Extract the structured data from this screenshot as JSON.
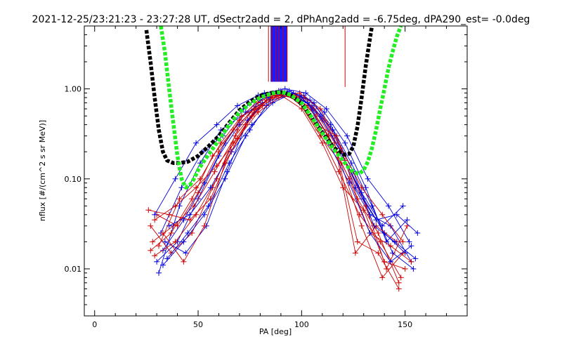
{
  "chart_data": {
    "type": "line",
    "title": "2021-12-25/23:21:23 - 23:27:28 UT, dSectr2add = 2, dPhAng2add = -6.75deg, dPA290_est=  -0.0deg",
    "xlabel": "PA [deg]",
    "ylabel": "nflux [#/(cm^2 s sr MeV)]",
    "xlim": [
      -5,
      180
    ],
    "ylim": [
      0.003,
      5.0
    ],
    "yscale": "log",
    "x_ticks": [
      {
        "value": 0,
        "label": "0"
      },
      {
        "value": 50,
        "label": "50"
      },
      {
        "value": 100,
        "label": "100"
      },
      {
        "value": 150,
        "label": "150"
      }
    ],
    "x_minor_step": 10,
    "y_ticks": [
      {
        "value": 0.01,
        "label": "0.01"
      },
      {
        "value": 0.1,
        "label": "0.10"
      },
      {
        "value": 1.0,
        "label": "1.00"
      }
    ],
    "grid": false,
    "colors": {
      "red": "#cc0000",
      "blue": "#0000dd",
      "black_fit": "#000000",
      "green_fit": "#22ee22"
    },
    "vertical_markers": {
      "blue_band": [
        85,
        93
      ],
      "red_lines": [
        84,
        85.5,
        87.5,
        89,
        91,
        93,
        121
      ],
      "top_y": 5.0,
      "bottom_y": 1.2,
      "red_121_bottom_y": 1.05
    },
    "fits": [
      {
        "color": "black_fit",
        "x": [
          25,
          27,
          29,
          31,
          33,
          35,
          38,
          41,
          45,
          50,
          55,
          60,
          65,
          70,
          75,
          80,
          85,
          88,
          90,
          92,
          95,
          100,
          105,
          110,
          115,
          118,
          121,
          123,
          125,
          127,
          129,
          131,
          133,
          134
        ],
        "y": [
          4.5,
          2.0,
          0.8,
          0.35,
          0.2,
          0.16,
          0.15,
          0.15,
          0.155,
          0.18,
          0.23,
          0.3,
          0.42,
          0.58,
          0.72,
          0.84,
          0.9,
          0.92,
          0.92,
          0.9,
          0.84,
          0.68,
          0.48,
          0.33,
          0.23,
          0.2,
          0.185,
          0.19,
          0.23,
          0.38,
          0.8,
          1.8,
          3.6,
          5.0
        ]
      },
      {
        "color": "green_fit",
        "x": [
          32,
          34,
          36,
          38,
          40,
          42,
          44,
          46,
          48,
          50,
          53,
          56,
          60,
          65,
          70,
          75,
          80,
          85,
          88,
          90,
          92,
          95,
          100,
          105,
          110,
          115,
          120,
          123,
          125,
          127,
          128,
          130,
          132,
          134,
          136,
          138,
          140,
          142,
          144,
          146,
          148
        ],
        "y": [
          5.0,
          2.5,
          1.0,
          0.42,
          0.18,
          0.1,
          0.08,
          0.085,
          0.1,
          0.125,
          0.16,
          0.2,
          0.27,
          0.4,
          0.55,
          0.68,
          0.8,
          0.88,
          0.91,
          0.92,
          0.9,
          0.85,
          0.7,
          0.48,
          0.32,
          0.22,
          0.16,
          0.13,
          0.12,
          0.115,
          0.115,
          0.125,
          0.155,
          0.22,
          0.35,
          0.6,
          1.0,
          1.7,
          2.6,
          3.8,
          5.0
        ]
      }
    ],
    "series": [
      {
        "color": "blue",
        "x": [
          30,
          40,
          50,
          60,
          70,
          80,
          90,
          100,
          110,
          120,
          130,
          140,
          150
        ],
        "y": [
          0.012,
          0.02,
          0.06,
          0.18,
          0.4,
          0.75,
          0.95,
          0.8,
          0.45,
          0.18,
          0.06,
          0.025,
          0.015
        ]
      },
      {
        "color": "red",
        "x": [
          28,
          38,
          48,
          58,
          68,
          78,
          88,
          98,
          108,
          118,
          128,
          138,
          148
        ],
        "y": [
          0.02,
          0.03,
          0.05,
          0.12,
          0.3,
          0.6,
          0.9,
          0.75,
          0.35,
          0.12,
          0.04,
          0.02,
          0.008
        ]
      },
      {
        "color": "blue",
        "x": [
          33,
          43,
          53,
          63,
          73,
          83,
          93,
          103,
          113,
          123,
          133,
          143,
          153
        ],
        "y": [
          0.016,
          0.035,
          0.09,
          0.25,
          0.55,
          0.85,
          0.92,
          0.7,
          0.3,
          0.1,
          0.04,
          0.03,
          0.012
        ]
      },
      {
        "color": "red",
        "x": [
          27,
          37,
          47,
          57,
          67,
          77,
          87,
          97,
          107,
          117,
          127,
          137,
          147
        ],
        "y": [
          0.03,
          0.015,
          0.025,
          0.08,
          0.25,
          0.55,
          0.88,
          0.85,
          0.5,
          0.2,
          0.02,
          0.015,
          0.006
        ]
      },
      {
        "color": "blue",
        "x": [
          31,
          41,
          51,
          61,
          71,
          81,
          91,
          101,
          111,
          121,
          131,
          141,
          151
        ],
        "y": [
          0.009,
          0.05,
          0.15,
          0.35,
          0.5,
          0.7,
          0.9,
          0.85,
          0.55,
          0.25,
          0.08,
          0.02,
          0.035
        ]
      },
      {
        "color": "red",
        "x": [
          29,
          39,
          49,
          59,
          69,
          79,
          89,
          99,
          109,
          119,
          129,
          139,
          149
        ],
        "y": [
          0.014,
          0.02,
          0.04,
          0.1,
          0.35,
          0.7,
          0.95,
          0.7,
          0.3,
          0.15,
          0.03,
          0.008,
          0.015
        ]
      },
      {
        "color": "blue",
        "x": [
          34,
          44,
          54,
          64,
          74,
          84,
          94,
          104,
          114,
          124,
          134,
          144,
          154
        ],
        "y": [
          0.02,
          0.015,
          0.03,
          0.12,
          0.45,
          0.8,
          0.95,
          0.75,
          0.4,
          0.15,
          0.05,
          0.015,
          0.01
        ]
      },
      {
        "color": "red",
        "x": [
          30,
          40,
          50,
          60,
          70,
          80,
          90,
          100,
          110,
          120,
          130,
          140,
          150
        ],
        "y": [
          0.04,
          0.03,
          0.07,
          0.2,
          0.45,
          0.8,
          0.85,
          0.6,
          0.25,
          0.08,
          0.045,
          0.012,
          0.01
        ]
      },
      {
        "color": "blue",
        "x": [
          32,
          42,
          52,
          62,
          72,
          82,
          92,
          102,
          112,
          122,
          132,
          142,
          152
        ],
        "y": [
          0.025,
          0.08,
          0.2,
          0.3,
          0.6,
          0.9,
          1.0,
          0.9,
          0.6,
          0.3,
          0.1,
          0.05,
          0.02
        ]
      },
      {
        "color": "red",
        "x": [
          26,
          36,
          46,
          56,
          66,
          76,
          86,
          96,
          106,
          116,
          126,
          136,
          146
        ],
        "y": [
          0.045,
          0.04,
          0.035,
          0.06,
          0.2,
          0.5,
          0.8,
          0.9,
          0.6,
          0.25,
          0.015,
          0.03,
          0.02
        ]
      },
      {
        "color": "blue",
        "x": [
          35,
          45,
          55,
          65,
          75,
          85,
          95,
          105,
          115,
          125,
          135,
          145,
          155
        ],
        "y": [
          0.013,
          0.025,
          0.05,
          0.15,
          0.35,
          0.75,
          0.85,
          0.65,
          0.35,
          0.12,
          0.03,
          0.02,
          0.013
        ]
      },
      {
        "color": "red",
        "x": [
          31,
          41,
          51,
          61,
          71,
          81,
          91,
          101,
          111,
          121,
          131,
          141,
          151
        ],
        "y": [
          0.018,
          0.06,
          0.1,
          0.25,
          0.5,
          0.65,
          0.9,
          0.8,
          0.45,
          0.16,
          0.05,
          0.01,
          0.03
        ]
      },
      {
        "color": "blue",
        "x": [
          36,
          46,
          56,
          66,
          76,
          86,
          96,
          106,
          116,
          126,
          136,
          146,
          156
        ],
        "y": [
          0.03,
          0.04,
          0.08,
          0.2,
          0.4,
          0.7,
          0.9,
          0.7,
          0.3,
          0.08,
          0.035,
          0.04,
          0.025
        ]
      },
      {
        "color": "red",
        "x": [
          33,
          43,
          53,
          63,
          73,
          83,
          93,
          103,
          113,
          123,
          133,
          143,
          153
        ],
        "y": [
          0.025,
          0.012,
          0.03,
          0.15,
          0.4,
          0.75,
          0.9,
          0.65,
          0.3,
          0.1,
          0.025,
          0.018,
          0.012
        ]
      },
      {
        "color": "blue",
        "x": [
          29,
          39,
          49,
          59,
          69,
          79,
          89,
          99,
          109,
          119,
          129,
          139,
          149
        ],
        "y": [
          0.04,
          0.1,
          0.25,
          0.4,
          0.65,
          0.85,
          0.95,
          0.85,
          0.5,
          0.2,
          0.07,
          0.03,
          0.05
        ]
      },
      {
        "color": "red",
        "x": [
          27,
          37,
          47,
          57,
          67,
          77,
          87,
          97,
          107,
          117,
          127,
          137,
          147
        ],
        "y": [
          0.016,
          0.025,
          0.06,
          0.18,
          0.35,
          0.6,
          0.85,
          0.8,
          0.4,
          0.3,
          0.06,
          0.025,
          0.007
        ]
      },
      {
        "color": "blue",
        "x": [
          33,
          43,
          53,
          63,
          73,
          83,
          93,
          103,
          113,
          123,
          133,
          143,
          153
        ],
        "y": [
          0.011,
          0.02,
          0.04,
          0.1,
          0.3,
          0.65,
          0.9,
          0.7,
          0.25,
          0.09,
          0.025,
          0.012,
          0.018
        ]
      },
      {
        "color": "red",
        "x": [
          29,
          39,
          49,
          59,
          69,
          79,
          89,
          99,
          109,
          119,
          129,
          139,
          149
        ],
        "y": [
          0.035,
          0.05,
          0.08,
          0.14,
          0.28,
          0.55,
          0.8,
          0.9,
          0.6,
          0.22,
          0.08,
          0.04,
          0.02
        ]
      }
    ]
  }
}
